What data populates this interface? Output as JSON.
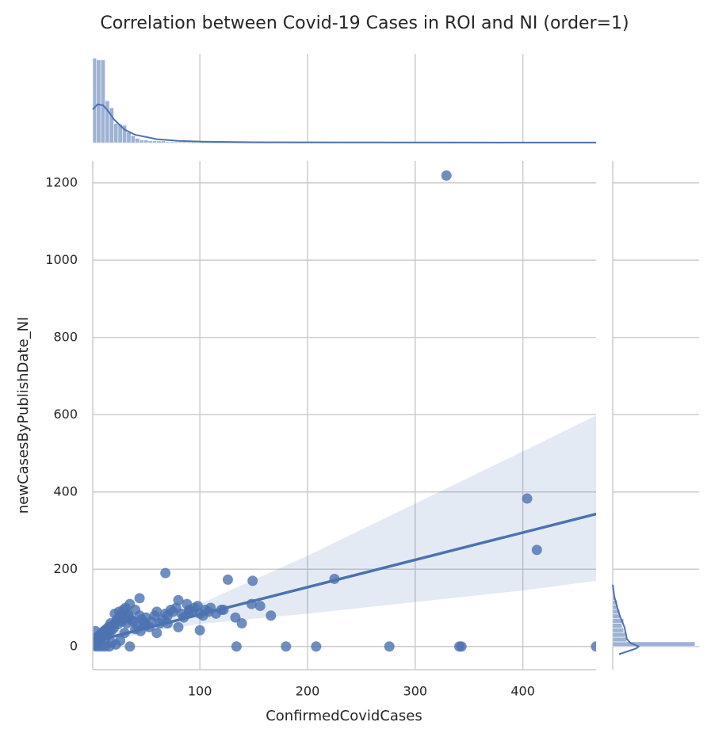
{
  "chart_data": {
    "type": "scatter",
    "title": "Correlation between Covid-19 Cases in ROI and NI (order=1)",
    "x_label": "ConfirmedCovidCases",
    "y_label": "newCasesByPublishDate_NI",
    "color": "#4c72b0",
    "grid": true,
    "xlim": [
      0.5,
      468
    ],
    "ylim": [
      -60,
      1257
    ],
    "xticks": [
      100,
      200,
      300,
      400
    ],
    "yticks": [
      0,
      200,
      400,
      600,
      800,
      1000,
      1200
    ],
    "x": [
      2,
      3,
      4,
      5,
      6,
      7,
      8,
      9,
      10,
      11,
      12,
      13,
      14,
      15,
      16,
      17,
      18,
      19,
      20,
      21,
      22,
      23,
      24,
      25,
      26,
      27,
      28,
      29,
      30,
      31,
      32,
      33,
      34,
      35,
      36,
      38,
      40,
      42,
      44,
      46,
      48,
      50,
      53,
      55,
      58,
      60,
      63,
      65,
      68,
      70,
      73,
      75,
      78,
      80,
      83,
      85,
      88,
      90,
      93,
      95,
      98,
      100,
      103,
      105,
      108,
      110,
      115,
      120,
      12,
      18,
      22,
      26,
      30,
      35,
      40,
      45,
      50,
      60,
      70,
      80,
      90,
      329,
      404,
      413,
      225,
      126,
      149,
      68,
      180,
      208,
      276,
      341,
      343,
      468,
      134,
      148,
      156,
      166,
      139,
      133,
      100,
      122,
      44,
      4,
      8,
      16,
      1,
      3
    ],
    "values": [
      5,
      15,
      10,
      25,
      20,
      30,
      18,
      35,
      28,
      40,
      22,
      45,
      30,
      50,
      38,
      60,
      42,
      55,
      48,
      85,
      62,
      70,
      58,
      90,
      75,
      80,
      65,
      95,
      72,
      100,
      60,
      85,
      78,
      110,
      70,
      65,
      95,
      55,
      80,
      70,
      60,
      75,
      50,
      65,
      80,
      90,
      60,
      70,
      85,
      80,
      95,
      90,
      100,
      120,
      85,
      75,
      110,
      95,
      90,
      100,
      105,
      85,
      80,
      95,
      90,
      100,
      85,
      95,
      0,
      10,
      5,
      15,
      35,
      0,
      45,
      40,
      55,
      35,
      60,
      50,
      90,
      1219,
      383,
      250,
      175,
      173,
      170,
      190,
      0,
      0,
      0,
      0,
      0,
      0,
      0,
      110,
      105,
      80,
      60,
      75,
      42,
      95,
      125,
      0,
      0,
      0,
      2,
      40
    ],
    "regression": {
      "x": [
        0,
        468
      ],
      "y": [
        12,
        343
      ]
    },
    "band": {
      "x": [
        0,
        50,
        100,
        200,
        300,
        400,
        468
      ],
      "lower": [
        0,
        38,
        58,
        85,
        115,
        145,
        170
      ],
      "upper": [
        28,
        58,
        110,
        235,
        370,
        505,
        598
      ]
    },
    "marginal_x": {
      "bins": [
        0,
        4,
        8,
        12,
        16,
        20,
        24,
        28,
        32,
        36,
        40,
        44,
        48,
        52,
        56,
        60,
        64,
        68,
        72,
        76,
        80,
        84,
        88,
        92,
        96,
        100
      ],
      "counts": [
        97,
        95,
        95,
        48,
        40,
        22,
        21,
        20,
        12,
        8,
        5,
        3,
        3,
        2,
        2,
        2,
        2,
        1,
        1,
        1,
        1,
        2,
        1,
        0,
        1
      ],
      "kde_x": [
        0,
        5,
        10,
        15,
        20,
        30,
        40,
        60,
        80,
        100,
        150,
        200,
        300,
        468
      ],
      "kde_y": [
        38,
        44,
        43,
        36,
        27,
        15,
        9,
        4,
        2,
        1.2,
        0.5,
        0.3,
        0.2,
        0.1
      ]
    },
    "marginal_y": {
      "bins": [
        0,
        12,
        24,
        36,
        48,
        60,
        72,
        84,
        96,
        108,
        120,
        132,
        144,
        156
      ],
      "counts": [
        105,
        18,
        16,
        14,
        12,
        14,
        10,
        9,
        7,
        6,
        3,
        2,
        2
      ],
      "kde_y": [
        -20,
        -5,
        0,
        10,
        20,
        30,
        40,
        50,
        60,
        70,
        80,
        100,
        130,
        160
      ],
      "kde_x": [
        8,
        30,
        33,
        22,
        18,
        17,
        16,
        15,
        13,
        11,
        9,
        6,
        2,
        0
      ]
    }
  }
}
